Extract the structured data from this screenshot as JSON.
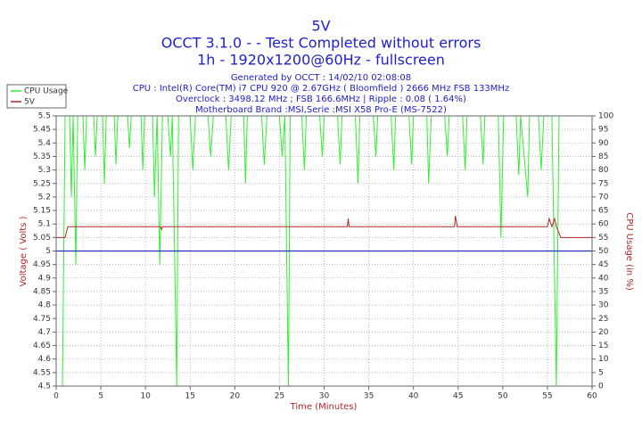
{
  "chart_data": {
    "type": "line",
    "title": "5V",
    "title_lines": [
      "OCCT 3.1.0 -  - Test Completed without errors",
      "1h - 1920x1200@60Hz - fullscreen"
    ],
    "subtitle_lines": [
      "Generated by OCCT : 14/02/10 02:08:08",
      "CPU : Intel(R) Core(TM) i7 CPU 920 @ 2.67GHz ( Bloomfield ) 2666 MHz FSB 133MHz",
      "Overclock : 3498.12 MHz ; FSB 166.6MHz | Ripple : 0.08 ( 1.64%)",
      "Motherboard Brand :MSI,Serie :MSI X58 Pro-E (MS-7522)"
    ],
    "x_label": "Time (Minutes)",
    "y_label": "Voltage ( Volts )",
    "y2_label": "CPU Usage (in %)",
    "xlim": [
      0,
      60
    ],
    "xticks": [
      0,
      5,
      10,
      15,
      20,
      25,
      30,
      35,
      40,
      45,
      50,
      55,
      60
    ],
    "ylim": [
      4.5,
      5.5
    ],
    "yticks": [
      4.5,
      4.55,
      4.6,
      4.65,
      4.7,
      4.75,
      4.8,
      4.85,
      4.9,
      4.95,
      5,
      5.05,
      5.1,
      5.15,
      5.2,
      5.25,
      5.3,
      5.35,
      5.4,
      5.45,
      5.5
    ],
    "y2lim": [
      0,
      100
    ],
    "y2ticks": [
      0,
      5,
      10,
      15,
      20,
      25,
      30,
      35,
      40,
      45,
      50,
      55,
      60,
      65,
      70,
      75,
      80,
      85,
      90,
      95,
      100
    ],
    "grid": true,
    "legend": "upper-left",
    "hline": 5,
    "hline_color": "#2030c0",
    "series": [
      {
        "name": "CPU Usage",
        "color": "#33ee33",
        "axis": "y2",
        "x": [
          0,
          0.7,
          1,
          1.5,
          1.7,
          1.9,
          2.2,
          2.4,
          3,
          3.2,
          3.4,
          4.2,
          4.4,
          4.6,
          5.2,
          5.4,
          5.6,
          6.5,
          6.7,
          6.9,
          8,
          8.2,
          8.4,
          9.5,
          9.7,
          9.9,
          10.8,
          11,
          11.3,
          11.6,
          11.9,
          12.5,
          12.8,
          13,
          13.5,
          13.7,
          15,
          15.3,
          15.6,
          17,
          17.3,
          17.6,
          19,
          19.3,
          19.6,
          21,
          21.2,
          21.4,
          23,
          23.3,
          23.6,
          25,
          25.3,
          25.6,
          26,
          26.2,
          27.5,
          27.8,
          28,
          29.5,
          29.8,
          30,
          31.5,
          31.8,
          32,
          33.5,
          33.8,
          34,
          35.5,
          35.8,
          36,
          37.5,
          37.8,
          38,
          39.5,
          39.8,
          40,
          41.5,
          41.7,
          42,
          43.5,
          43.8,
          44,
          45.5,
          45.8,
          46,
          47.5,
          47.8,
          48,
          49.5,
          49.8,
          50.1,
          51.5,
          51.8,
          52,
          52.8,
          53,
          54,
          54.3,
          54.6,
          55.5,
          56,
          56.3,
          57
        ],
        "values": [
          0,
          0,
          100,
          100,
          70,
          100,
          45,
          100,
          100,
          80,
          100,
          100,
          85,
          100,
          100,
          75,
          100,
          100,
          82,
          100,
          100,
          88,
          100,
          100,
          80,
          100,
          100,
          70,
          100,
          45,
          100,
          100,
          85,
          100,
          0,
          100,
          100,
          80,
          100,
          100,
          85,
          100,
          100,
          80,
          100,
          100,
          75,
          100,
          100,
          82,
          100,
          100,
          85,
          100,
          0,
          100,
          100,
          80,
          100,
          100,
          85,
          100,
          100,
          82,
          100,
          100,
          75,
          100,
          100,
          85,
          100,
          100,
          80,
          100,
          100,
          82,
          100,
          100,
          75,
          100,
          100,
          85,
          100,
          100,
          80,
          100,
          100,
          82,
          100,
          100,
          55,
          100,
          100,
          78,
          100,
          70,
          100,
          100,
          80,
          100,
          100,
          0,
          100,
          100
        ]
      },
      {
        "name": "5V",
        "color": "#b02828",
        "x": [
          0,
          1,
          1.3,
          1.6,
          11.7,
          11.8,
          11.9,
          32.6,
          32.7,
          32.8,
          44.6,
          44.7,
          44.9,
          55,
          55.2,
          55.5,
          55.8,
          56,
          56.5,
          60
        ],
        "values": [
          5.05,
          5.05,
          5.09,
          5.09,
          5.09,
          5.08,
          5.09,
          5.09,
          5.12,
          5.09,
          5.09,
          5.13,
          5.09,
          5.09,
          5.12,
          5.09,
          5.12,
          5.09,
          5.05,
          5.05
        ]
      }
    ]
  }
}
